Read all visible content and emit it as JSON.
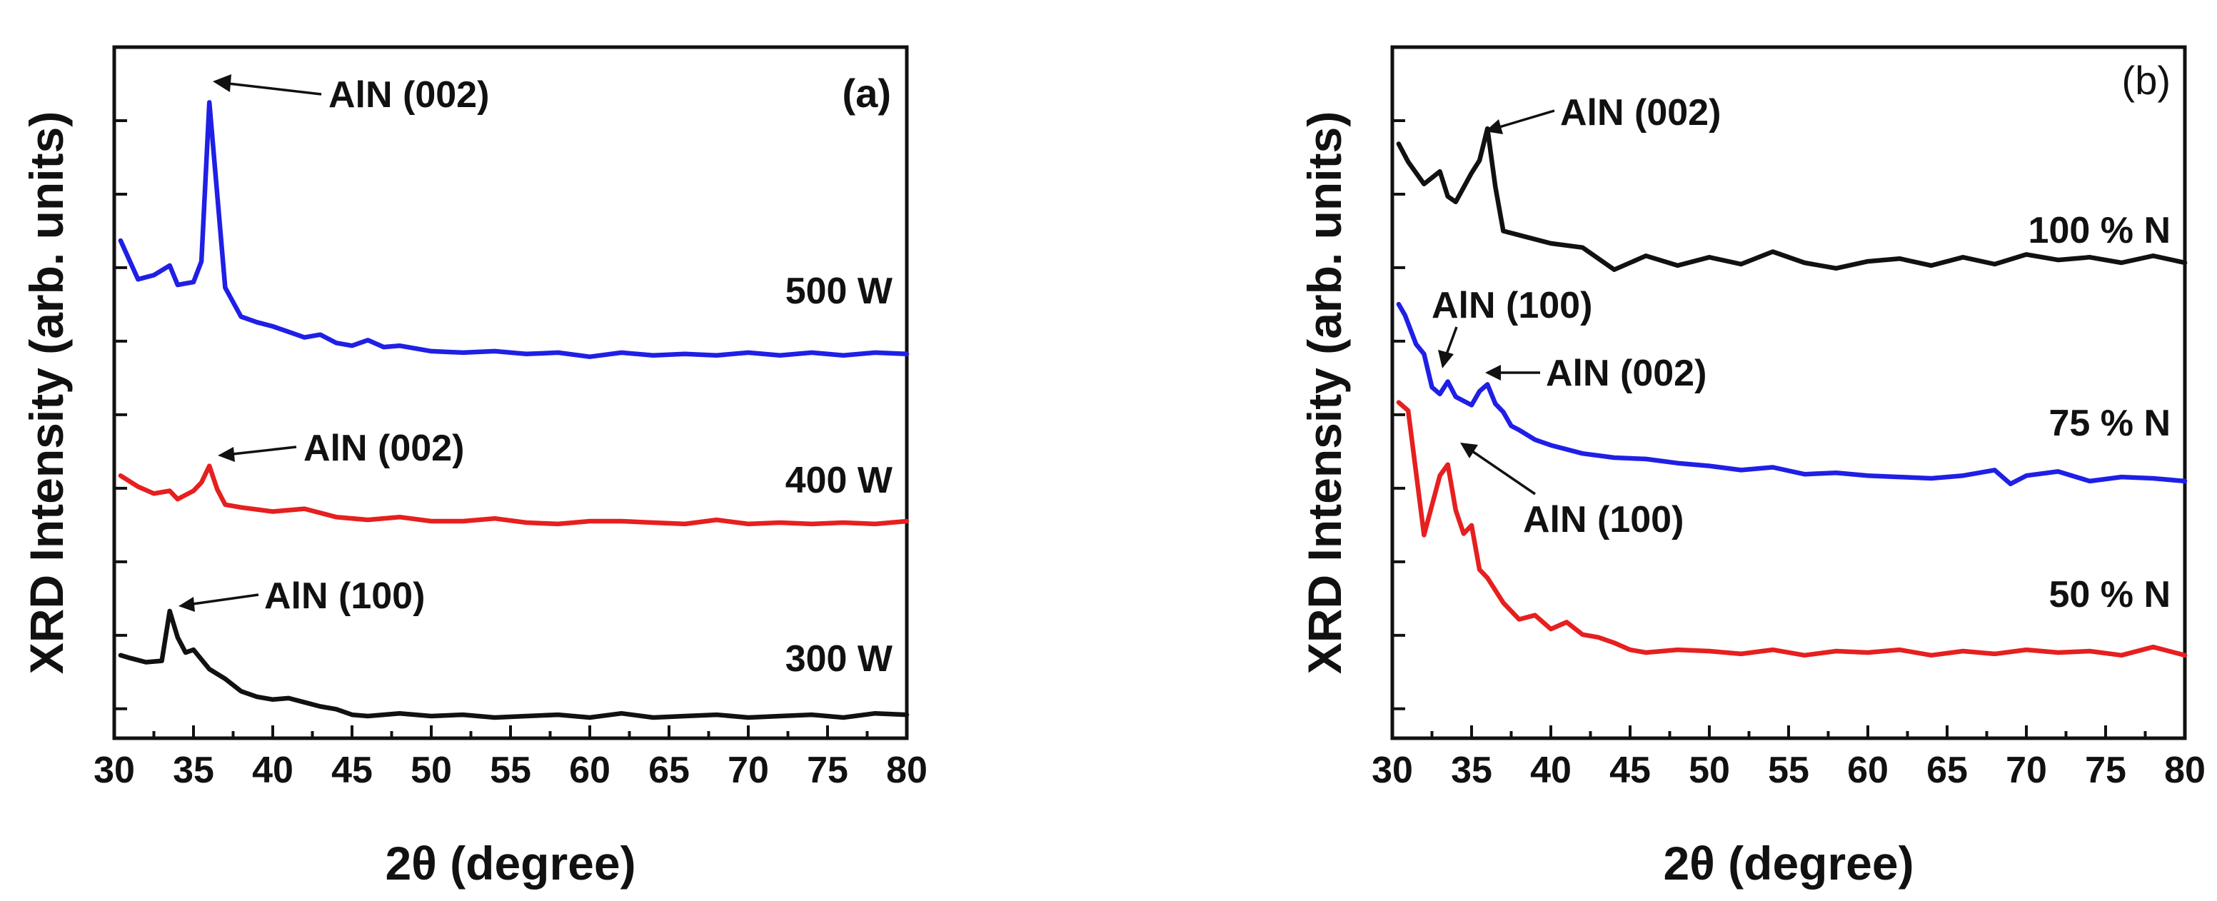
{
  "chart_data": [
    {
      "type": "line",
      "panel": "(a)",
      "title": "",
      "xlabel": "2θ (degree)",
      "ylabel": "XRD Intensity (arb. units)",
      "xlim": [
        30,
        80
      ],
      "ylim": [
        0,
        100
      ],
      "xticks": [
        30,
        35,
        40,
        45,
        50,
        55,
        60,
        65,
        70,
        75,
        80
      ],
      "yticks_labeled": false,
      "series": [
        {
          "name": "500 W",
          "color": "#1f1fe6",
          "x": [
            30.4,
            31.5,
            32.5,
            33.5,
            34.0,
            35.0,
            35.5,
            36.0,
            37.0,
            38.0,
            39.0,
            40.0,
            41.0,
            42.0,
            43.0,
            44.0,
            45.0,
            46.0,
            47.0,
            48.0,
            50.0,
            52.0,
            54.0,
            56.0,
            58.0,
            60.0,
            62.0,
            64.0,
            66.0,
            68.0,
            70.0,
            72.0,
            74.0,
            76.0,
            78.0,
            80.0
          ],
          "y": [
            72.0,
            66.4,
            67.0,
            68.4,
            65.6,
            66.0,
            69.0,
            92.0,
            65.2,
            61.0,
            60.2,
            59.6,
            58.8,
            58.0,
            58.4,
            57.2,
            56.8,
            57.6,
            56.6,
            56.8,
            56.0,
            55.8,
            56.0,
            55.6,
            55.8,
            55.2,
            55.8,
            55.4,
            55.6,
            55.4,
            55.8,
            55.4,
            55.8,
            55.4,
            55.8,
            55.6
          ]
        },
        {
          "name": "400 W",
          "color": "#e61f1f",
          "x": [
            30.4,
            31.5,
            32.5,
            33.5,
            34.0,
            35.0,
            35.5,
            36.0,
            36.5,
            37.0,
            38.0,
            40.0,
            42.0,
            44.0,
            46.0,
            48.0,
            50.0,
            52.0,
            54.0,
            56.0,
            58.0,
            60.0,
            62.0,
            64.0,
            66.0,
            68.0,
            70.0,
            72.0,
            74.0,
            76.0,
            78.0,
            80.0
          ],
          "y": [
            38.0,
            36.4,
            35.4,
            35.8,
            34.6,
            35.8,
            37.0,
            39.4,
            36.0,
            33.8,
            33.4,
            32.8,
            33.2,
            32.0,
            31.6,
            32.0,
            31.4,
            31.4,
            31.8,
            31.2,
            31.0,
            31.4,
            31.4,
            31.2,
            31.0,
            31.6,
            31.0,
            31.2,
            31.0,
            31.2,
            31.0,
            31.4
          ]
        },
        {
          "name": "300 W",
          "color": "#111111",
          "x": [
            30.4,
            31.0,
            32.0,
            33.0,
            33.5,
            34.0,
            34.5,
            35.0,
            36.0,
            37.0,
            38.0,
            39.0,
            40.0,
            41.0,
            42.0,
            43.0,
            44.0,
            45.0,
            46.0,
            48.0,
            50.0,
            52.0,
            54.0,
            56.0,
            58.0,
            60.0,
            62.0,
            64.0,
            66.0,
            68.0,
            70.0,
            72.0,
            74.0,
            76.0,
            78.0,
            80.0
          ],
          "y": [
            12.0,
            11.6,
            11.0,
            11.2,
            18.4,
            14.6,
            12.4,
            12.8,
            10.0,
            8.6,
            6.8,
            6.0,
            5.6,
            5.8,
            5.2,
            4.6,
            4.2,
            3.4,
            3.2,
            3.6,
            3.2,
            3.4,
            3.0,
            3.2,
            3.4,
            3.0,
            3.6,
            3.0,
            3.2,
            3.4,
            3.0,
            3.2,
            3.4,
            3.0,
            3.6,
            3.4
          ]
        }
      ],
      "annotations": [
        "AlN (002)",
        "AlN (002)",
        "AlN (100)"
      ],
      "series_labels": [
        "500 W",
        "400 W",
        "300 W"
      ]
    },
    {
      "type": "line",
      "panel": "(b)",
      "title": "",
      "xlabel": "2θ (degree)",
      "ylabel": "XRD Intensity (arb. units)",
      "xlim": [
        30,
        80
      ],
      "ylim": [
        0,
        100
      ],
      "xticks": [
        30,
        35,
        40,
        45,
        50,
        55,
        60,
        65,
        70,
        75,
        80
      ],
      "yticks_labeled": false,
      "series": [
        {
          "name": "100 % N",
          "color": "#111111",
          "x": [
            30.4,
            31.0,
            32.0,
            33.0,
            33.5,
            34.0,
            35.0,
            35.5,
            36.0,
            36.5,
            37.0,
            38.0,
            40.0,
            42.0,
            44.0,
            46.0,
            48.0,
            50.0,
            52.0,
            54.0,
            56.0,
            58.0,
            60.0,
            62.0,
            64.0,
            66.0,
            68.0,
            70.0,
            72.0,
            74.0,
            76.0,
            78.0,
            80.0
          ],
          "y": [
            86.0,
            83.4,
            80.2,
            82.0,
            78.4,
            77.6,
            81.8,
            83.6,
            88.2,
            79.8,
            73.4,
            72.8,
            71.6,
            71.0,
            67.8,
            69.8,
            68.4,
            69.6,
            68.6,
            70.4,
            68.8,
            68.0,
            69.0,
            69.4,
            68.4,
            69.6,
            68.6,
            70.0,
            69.2,
            69.6,
            68.8,
            69.8,
            68.8
          ]
        },
        {
          "name": "75 % N",
          "color": "#1f1fe6",
          "x": [
            30.4,
            30.8,
            31.5,
            32.0,
            32.5,
            33.0,
            33.5,
            34.0,
            34.5,
            35.0,
            35.5,
            36.0,
            36.5,
            37.0,
            37.5,
            38.0,
            39.0,
            40.0,
            42.0,
            44.0,
            46.0,
            48.0,
            50.0,
            52.0,
            54.0,
            56.0,
            58.0,
            60.0,
            62.0,
            64.0,
            66.0,
            68.0,
            69.0,
            70.0,
            72.0,
            74.0,
            76.0,
            78.0,
            80.0
          ],
          "y": [
            62.8,
            61.2,
            57.0,
            55.6,
            50.8,
            49.8,
            51.6,
            49.4,
            48.8,
            48.2,
            50.2,
            51.2,
            48.4,
            47.2,
            45.2,
            44.6,
            43.2,
            42.4,
            41.2,
            40.6,
            40.4,
            39.8,
            39.4,
            38.8,
            39.2,
            38.2,
            38.4,
            38.0,
            37.8,
            37.6,
            38.0,
            38.8,
            36.8,
            38.0,
            38.6,
            37.2,
            37.8,
            37.6,
            37.2
          ]
        },
        {
          "name": "50 % N",
          "color": "#e61f1f",
          "x": [
            30.4,
            31.0,
            32.0,
            33.0,
            33.5,
            34.0,
            34.5,
            35.0,
            35.5,
            36.0,
            37.0,
            38.0,
            39.0,
            40.0,
            41.0,
            42.0,
            43.0,
            44.0,
            45.0,
            46.0,
            48.0,
            50.0,
            52.0,
            54.0,
            56.0,
            58.0,
            60.0,
            62.0,
            64.0,
            66.0,
            68.0,
            70.0,
            72.0,
            74.0,
            76.0,
            78.0,
            80.0
          ],
          "y": [
            48.6,
            47.4,
            29.4,
            38.0,
            39.6,
            33.0,
            29.6,
            30.8,
            24.4,
            23.2,
            19.6,
            17.2,
            17.8,
            15.8,
            16.8,
            15.0,
            14.6,
            13.8,
            12.8,
            12.4,
            12.8,
            12.6,
            12.2,
            12.8,
            12.0,
            12.6,
            12.4,
            12.8,
            12.0,
            12.6,
            12.2,
            12.8,
            12.4,
            12.6,
            12.0,
            13.2,
            12.0
          ]
        }
      ],
      "annotations": [
        "AlN (002)",
        "AlN (100)",
        "AlN (002)",
        "AlN (100)"
      ],
      "series_labels": [
        "100 % N",
        "75 % N",
        "50 % N"
      ]
    }
  ]
}
